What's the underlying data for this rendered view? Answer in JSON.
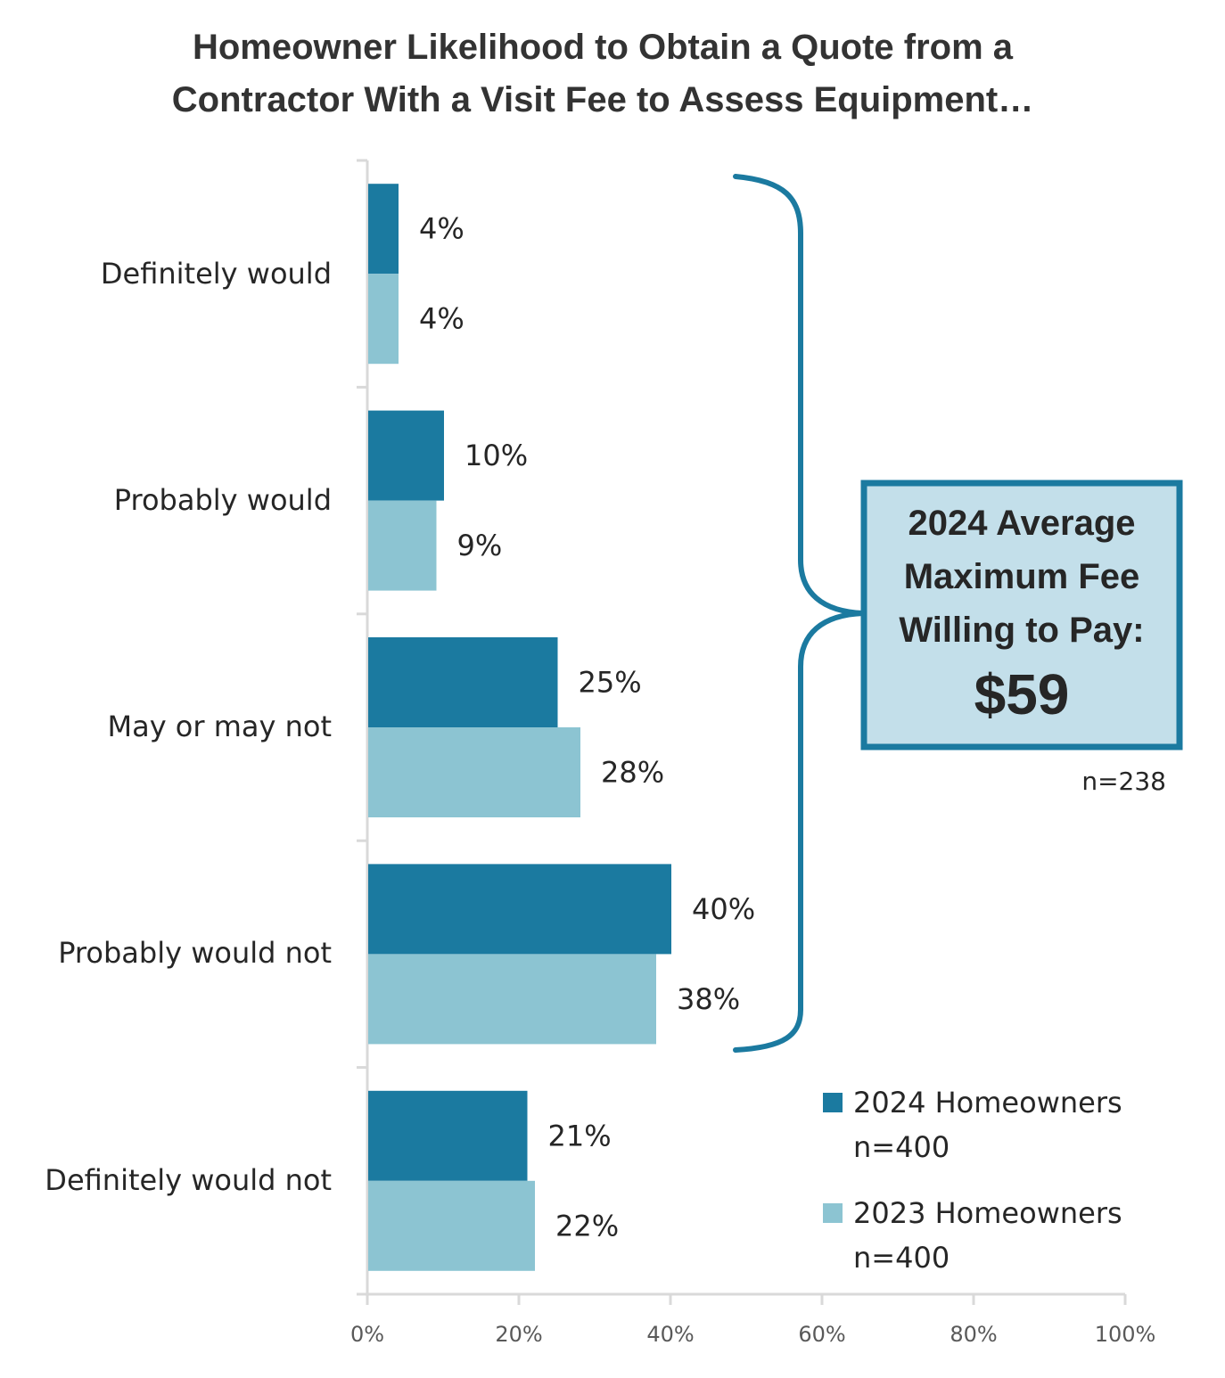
{
  "chart_data": {
    "type": "bar",
    "orientation": "horizontal",
    "title_lines": [
      "Homeowner Likelihood to Obtain a Quote from a",
      "Contractor With a Visit Fee to Assess Equipment…"
    ],
    "categories": [
      "Definitely would",
      "Probably would",
      "May or may not",
      "Probably would not",
      "Definitely would not"
    ],
    "series": [
      {
        "name": "2024 Homeowners",
        "sample": "n=400",
        "color": "#1b7aa0",
        "values": [
          4,
          10,
          25,
          40,
          21
        ]
      },
      {
        "name": "2023 Homeowners",
        "sample": "n=400",
        "color": "#8cc4d2",
        "values": [
          4,
          9,
          28,
          38,
          22
        ]
      }
    ],
    "data_labels": [
      [
        "4%",
        "10%",
        "25%",
        "40%",
        "21%"
      ],
      [
        "4%",
        "9%",
        "28%",
        "38%",
        "22%"
      ]
    ],
    "x_ticks": [
      "0%",
      "20%",
      "40%",
      "60%",
      "80%",
      "100%"
    ],
    "xlim": [
      0,
      100
    ],
    "unit": "%",
    "grid": false,
    "legend_position": "bottom-right",
    "callout": {
      "lines": [
        "2024 Average",
        "Maximum Fee",
        "Willing to Pay:"
      ],
      "value": "$59",
      "note": "n=238",
      "bracket_spans": [
        "Definitely would",
        "Probably would not"
      ],
      "fill": "#c3dfea",
      "border": "#1b7aa0"
    }
  }
}
